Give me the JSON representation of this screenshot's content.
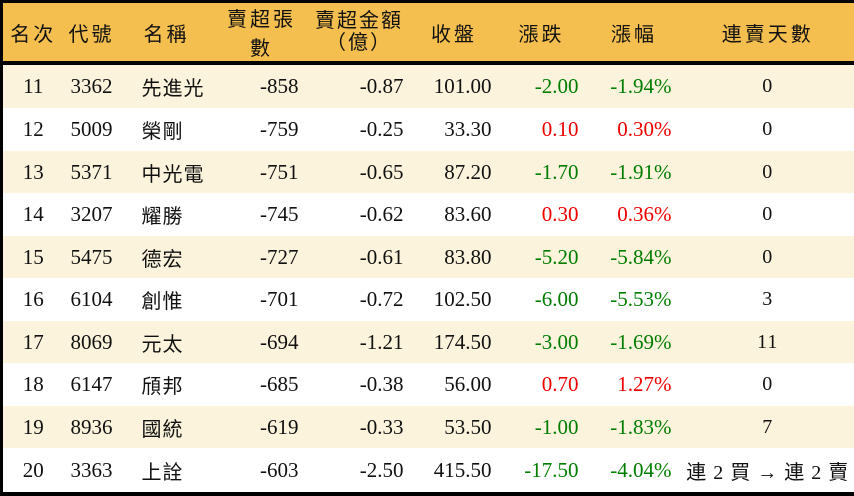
{
  "colors": {
    "header_bg": "#F5BF4F",
    "row_bg": "#FFFFFF",
    "row_alt_bg": "#FCF3DC",
    "border": "#000000",
    "text": "#111111",
    "up_red": "#EE0000",
    "down_green": "#007D00"
  },
  "table": {
    "columns": [
      {
        "label": "名次"
      },
      {
        "label": "代號"
      },
      {
        "label": "名稱"
      },
      {
        "label": "賣超張數"
      },
      {
        "label": "賣超金額",
        "label2": "（億）"
      },
      {
        "label": "收盤"
      },
      {
        "label": "漲跌"
      },
      {
        "label": "漲幅"
      },
      {
        "label": "連賣天數"
      }
    ],
    "rows": [
      {
        "rank": "11",
        "code": "3362",
        "name": "先進光",
        "sell_volume": "-858",
        "sell_amount": "-0.87",
        "close": "101.00",
        "change": "-2.00",
        "change_pct": "-1.94%",
        "sell_days": "0",
        "trend": "down"
      },
      {
        "rank": "12",
        "code": "5009",
        "name": "榮剛",
        "sell_volume": "-759",
        "sell_amount": "-0.25",
        "close": "33.30",
        "change": "0.10",
        "change_pct": "0.30%",
        "sell_days": "0",
        "trend": "up"
      },
      {
        "rank": "13",
        "code": "5371",
        "name": "中光電",
        "sell_volume": "-751",
        "sell_amount": "-0.65",
        "close": "87.20",
        "change": "-1.70",
        "change_pct": "-1.91%",
        "sell_days": "0",
        "trend": "down"
      },
      {
        "rank": "14",
        "code": "3207",
        "name": "耀勝",
        "sell_volume": "-745",
        "sell_amount": "-0.62",
        "close": "83.60",
        "change": "0.30",
        "change_pct": "0.36%",
        "sell_days": "0",
        "trend": "up"
      },
      {
        "rank": "15",
        "code": "5475",
        "name": "德宏",
        "sell_volume": "-727",
        "sell_amount": "-0.61",
        "close": "83.80",
        "change": "-5.20",
        "change_pct": "-5.84%",
        "sell_days": "0",
        "trend": "down"
      },
      {
        "rank": "16",
        "code": "6104",
        "name": "創惟",
        "sell_volume": "-701",
        "sell_amount": "-0.72",
        "close": "102.50",
        "change": "-6.00",
        "change_pct": "-5.53%",
        "sell_days": "3",
        "trend": "down"
      },
      {
        "rank": "17",
        "code": "8069",
        "name": "元太",
        "sell_volume": "-694",
        "sell_amount": "-1.21",
        "close": "174.50",
        "change": "-3.00",
        "change_pct": "-1.69%",
        "sell_days": "11",
        "trend": "down"
      },
      {
        "rank": "18",
        "code": "6147",
        "name": "頎邦",
        "sell_volume": "-685",
        "sell_amount": "-0.38",
        "close": "56.00",
        "change": "0.70",
        "change_pct": "1.27%",
        "sell_days": "0",
        "trend": "up"
      },
      {
        "rank": "19",
        "code": "8936",
        "name": "國統",
        "sell_volume": "-619",
        "sell_amount": "-0.33",
        "close": "53.50",
        "change": "-1.00",
        "change_pct": "-1.83%",
        "sell_days": "7",
        "trend": "down"
      },
      {
        "rank": "20",
        "code": "3363",
        "name": "上詮",
        "sell_volume": "-603",
        "sell_amount": "-2.50",
        "close": "415.50",
        "change": "-17.50",
        "change_pct": "-4.04%",
        "sell_days": "連 2 買 → 連 2 賣",
        "trend": "down"
      }
    ]
  },
  "chart_data": {
    "type": "table",
    "columns": [
      "名次",
      "代號",
      "名稱",
      "賣超張數",
      "賣超金額（億）",
      "收盤",
      "漲跌",
      "漲幅",
      "連賣天數"
    ],
    "rows": [
      [
        11,
        "3362",
        "先進光",
        -858,
        -0.87,
        101.0,
        -2.0,
        "-1.94%",
        "0"
      ],
      [
        12,
        "5009",
        "榮剛",
        -759,
        -0.25,
        33.3,
        0.1,
        "0.30%",
        "0"
      ],
      [
        13,
        "5371",
        "中光電",
        -751,
        -0.65,
        87.2,
        -1.7,
        "-1.91%",
        "0"
      ],
      [
        14,
        "3207",
        "耀勝",
        -745,
        -0.62,
        83.6,
        0.3,
        "0.36%",
        "0"
      ],
      [
        15,
        "5475",
        "德宏",
        -727,
        -0.61,
        83.8,
        -5.2,
        "-5.84%",
        "0"
      ],
      [
        16,
        "6104",
        "創惟",
        -701,
        -0.72,
        102.5,
        -6.0,
        "-5.53%",
        "3"
      ],
      [
        17,
        "8069",
        "元太",
        -694,
        -1.21,
        174.5,
        -3.0,
        "-1.69%",
        "11"
      ],
      [
        18,
        "6147",
        "頎邦",
        -685,
        -0.38,
        56.0,
        0.7,
        "1.27%",
        "0"
      ],
      [
        19,
        "8936",
        "國統",
        -619,
        -0.33,
        53.5,
        -1.0,
        "-1.83%",
        "7"
      ],
      [
        20,
        "3363",
        "上詮",
        -603,
        -2.5,
        415.5,
        -17.5,
        "-4.04%",
        "連 2 買 → 連 2 賣"
      ]
    ]
  }
}
